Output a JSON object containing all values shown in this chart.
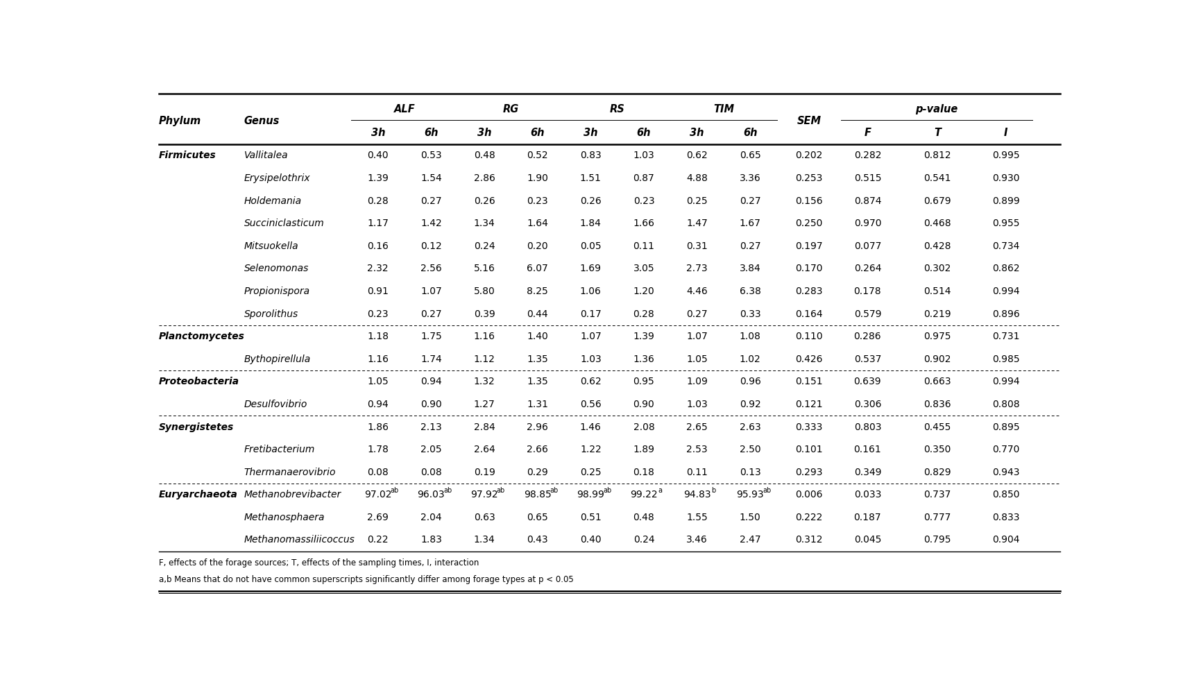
{
  "rows": [
    [
      "Firmicutes",
      "Vallitalea",
      "0.40",
      "0.53",
      "0.48",
      "0.52",
      "0.83",
      "1.03",
      "0.62",
      "0.65",
      "0.202",
      "0.282",
      "0.812",
      "0.995"
    ],
    [
      "",
      "Erysipelothrix",
      "1.39",
      "1.54",
      "2.86",
      "1.90",
      "1.51",
      "0.87",
      "4.88",
      "3.36",
      "0.253",
      "0.515",
      "0.541",
      "0.930"
    ],
    [
      "",
      "Holdemania",
      "0.28",
      "0.27",
      "0.26",
      "0.23",
      "0.26",
      "0.23",
      "0.25",
      "0.27",
      "0.156",
      "0.874",
      "0.679",
      "0.899"
    ],
    [
      "",
      "Succiniclasticum",
      "1.17",
      "1.42",
      "1.34",
      "1.64",
      "1.84",
      "1.66",
      "1.47",
      "1.67",
      "0.250",
      "0.970",
      "0.468",
      "0.955"
    ],
    [
      "",
      "Mitsuokella",
      "0.16",
      "0.12",
      "0.24",
      "0.20",
      "0.05",
      "0.11",
      "0.31",
      "0.27",
      "0.197",
      "0.077",
      "0.428",
      "0.734"
    ],
    [
      "",
      "Selenomonas",
      "2.32",
      "2.56",
      "5.16",
      "6.07",
      "1.69",
      "3.05",
      "2.73",
      "3.84",
      "0.170",
      "0.264",
      "0.302",
      "0.862"
    ],
    [
      "",
      "Propionispora",
      "0.91",
      "1.07",
      "5.80",
      "8.25",
      "1.06",
      "1.20",
      "4.46",
      "6.38",
      "0.283",
      "0.178",
      "0.514",
      "0.994"
    ],
    [
      "",
      "Sporolithus",
      "0.23",
      "0.27",
      "0.39",
      "0.44",
      "0.17",
      "0.28",
      "0.27",
      "0.33",
      "0.164",
      "0.579",
      "0.219",
      "0.896"
    ],
    [
      "Planctomycetes",
      "",
      "1.18",
      "1.75",
      "1.16",
      "1.40",
      "1.07",
      "1.39",
      "1.07",
      "1.08",
      "0.110",
      "0.286",
      "0.975",
      "0.731"
    ],
    [
      "",
      "Bythopirellula",
      "1.16",
      "1.74",
      "1.12",
      "1.35",
      "1.03",
      "1.36",
      "1.05",
      "1.02",
      "0.426",
      "0.537",
      "0.902",
      "0.985"
    ],
    [
      "Proteobacteria",
      "",
      "1.05",
      "0.94",
      "1.32",
      "1.35",
      "0.62",
      "0.95",
      "1.09",
      "0.96",
      "0.151",
      "0.639",
      "0.663",
      "0.994"
    ],
    [
      "",
      "Desulfovibrio",
      "0.94",
      "0.90",
      "1.27",
      "1.31",
      "0.56",
      "0.90",
      "1.03",
      "0.92",
      "0.121",
      "0.306",
      "0.836",
      "0.808"
    ],
    [
      "Synergistetes",
      "",
      "1.86",
      "2.13",
      "2.84",
      "2.96",
      "1.46",
      "2.08",
      "2.65",
      "2.63",
      "0.333",
      "0.803",
      "0.455",
      "0.895"
    ],
    [
      "",
      "Fretibacterium",
      "1.78",
      "2.05",
      "2.64",
      "2.66",
      "1.22",
      "1.89",
      "2.53",
      "2.50",
      "0.101",
      "0.161",
      "0.350",
      "0.770"
    ],
    [
      "",
      "Thermanaerovibrio",
      "0.08",
      "0.08",
      "0.19",
      "0.29",
      "0.25",
      "0.18",
      "0.11",
      "0.13",
      "0.293",
      "0.349",
      "0.829",
      "0.943"
    ],
    [
      "Euryarchaeota",
      "Methanobrevibacter",
      "97.02",
      "96.03",
      "97.92",
      "98.85",
      "98.99",
      "99.22",
      "94.83",
      "95.93",
      "0.006",
      "0.033",
      "0.737",
      "0.850"
    ],
    [
      "",
      "Methanosphaera",
      "2.69",
      "2.04",
      "0.63",
      "0.65",
      "0.51",
      "0.48",
      "1.55",
      "1.50",
      "0.222",
      "0.187",
      "0.777",
      "0.833"
    ],
    [
      "",
      "Methanomassiliicoccus",
      "0.22",
      "1.83",
      "1.34",
      "0.43",
      "0.40",
      "0.24",
      "3.46",
      "2.47",
      "0.312",
      "0.045",
      "0.795",
      "0.904"
    ]
  ],
  "methanobrevibacter_superscripts": [
    "ab",
    "ab",
    "ab",
    "ab",
    "ab",
    "a",
    "b",
    "ab"
  ],
  "separator_after_rows": [
    7,
    9,
    11,
    14
  ],
  "footnote1": "F, effects of the forage sources; T, effects of the sampling times, I, interaction",
  "footnote2": "a,b Means that do not have common superscripts significantly differ among forage types at p < 0.05",
  "bg_color": "#ffffff",
  "font_size": 10,
  "header_font_size": 10.5
}
